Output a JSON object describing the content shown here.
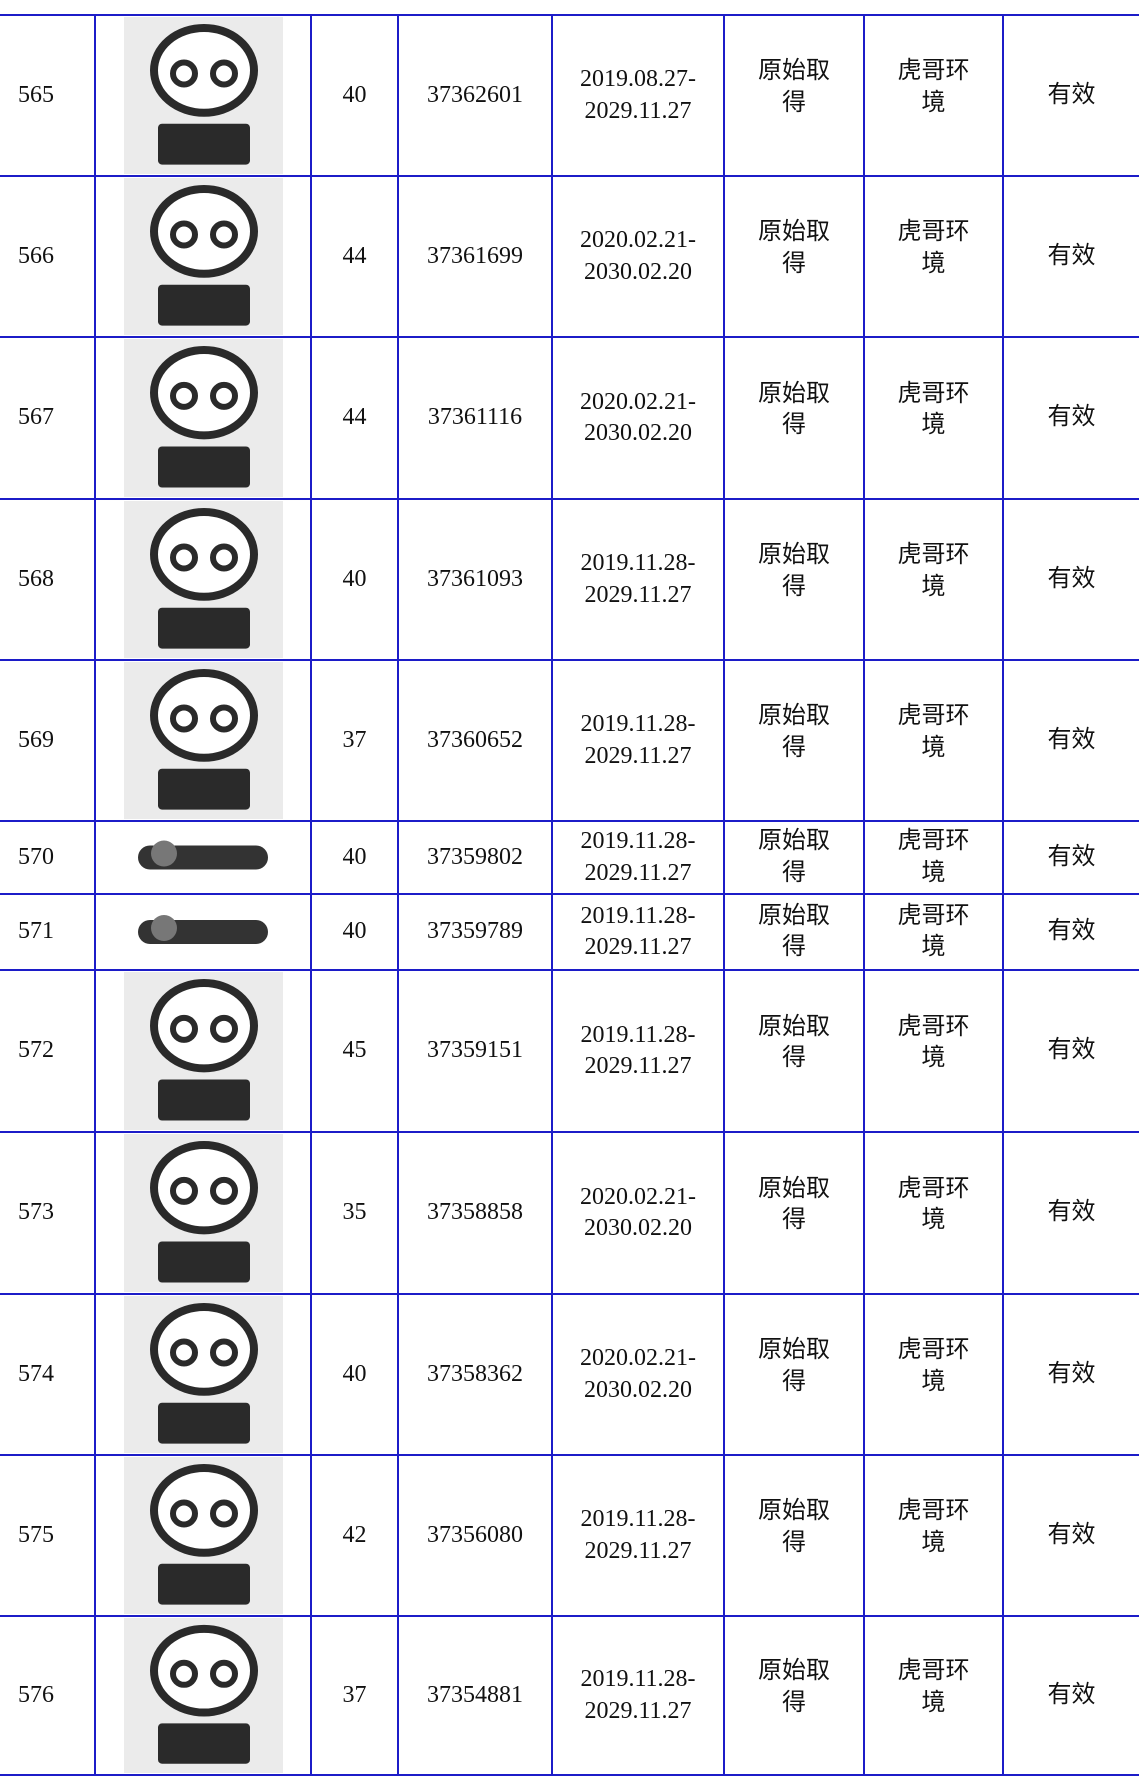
{
  "table": {
    "rows": [
      [
        "565",
        "40",
        "37362601",
        [
          "2019.08.27-",
          "2029.11.27"
        ],
        "原始取得",
        "虎哥环境",
        "有效"
      ],
      [
        "566",
        "44",
        "37361699",
        [
          "2020.02.21-",
          "2030.02.20"
        ],
        "原始取得",
        "虎哥环境",
        "有效"
      ],
      [
        "567",
        "44",
        "37361116",
        [
          "2020.02.21-",
          "2030.02.20"
        ],
        "原始取得",
        "虎哥环境",
        "有效"
      ],
      [
        "568",
        "40",
        "37361093",
        [
          "2019.11.28-",
          "2029.11.27"
        ],
        "原始取得",
        "虎哥环境",
        "有效"
      ],
      [
        "569",
        "37",
        "37360652",
        [
          "2019.11.28-",
          "2029.11.27"
        ],
        "原始取得",
        "虎哥环境",
        "有效"
      ],
      [
        "570",
        "40",
        "37359802",
        [
          "2019.11.28-",
          "2029.11.27"
        ],
        "原始取得",
        "虎哥环境",
        "有效"
      ],
      [
        "571",
        "40",
        "37359789",
        [
          "2019.11.28-",
          "2029.11.27"
        ],
        "原始取得",
        "虎哥环境",
        "有效"
      ],
      [
        "572",
        "45",
        "37359151",
        [
          "2019.11.28-",
          "2029.11.27"
        ],
        "原始取得",
        "虎哥环境",
        "有效"
      ],
      [
        "573",
        "35",
        "37358858",
        [
          "2020.02.21-",
          "2030.02.20"
        ],
        "原始取得",
        "虎哥环境",
        "有效"
      ],
      [
        "574",
        "40",
        "37358362",
        [
          "2020.02.21-",
          "2030.02.20"
        ],
        "原始取得",
        "虎哥环境",
        "有效"
      ],
      [
        "575",
        "42",
        "37356080",
        [
          "2019.11.28-",
          "2029.11.27"
        ],
        "原始取得",
        "虎哥环境",
        "有效"
      ],
      [
        "576",
        "37",
        "37354881",
        [
          "2019.11.28-",
          "2029.11.27"
        ],
        "原始取得",
        "虎哥环境",
        "有效"
      ]
    ]
  }
}
